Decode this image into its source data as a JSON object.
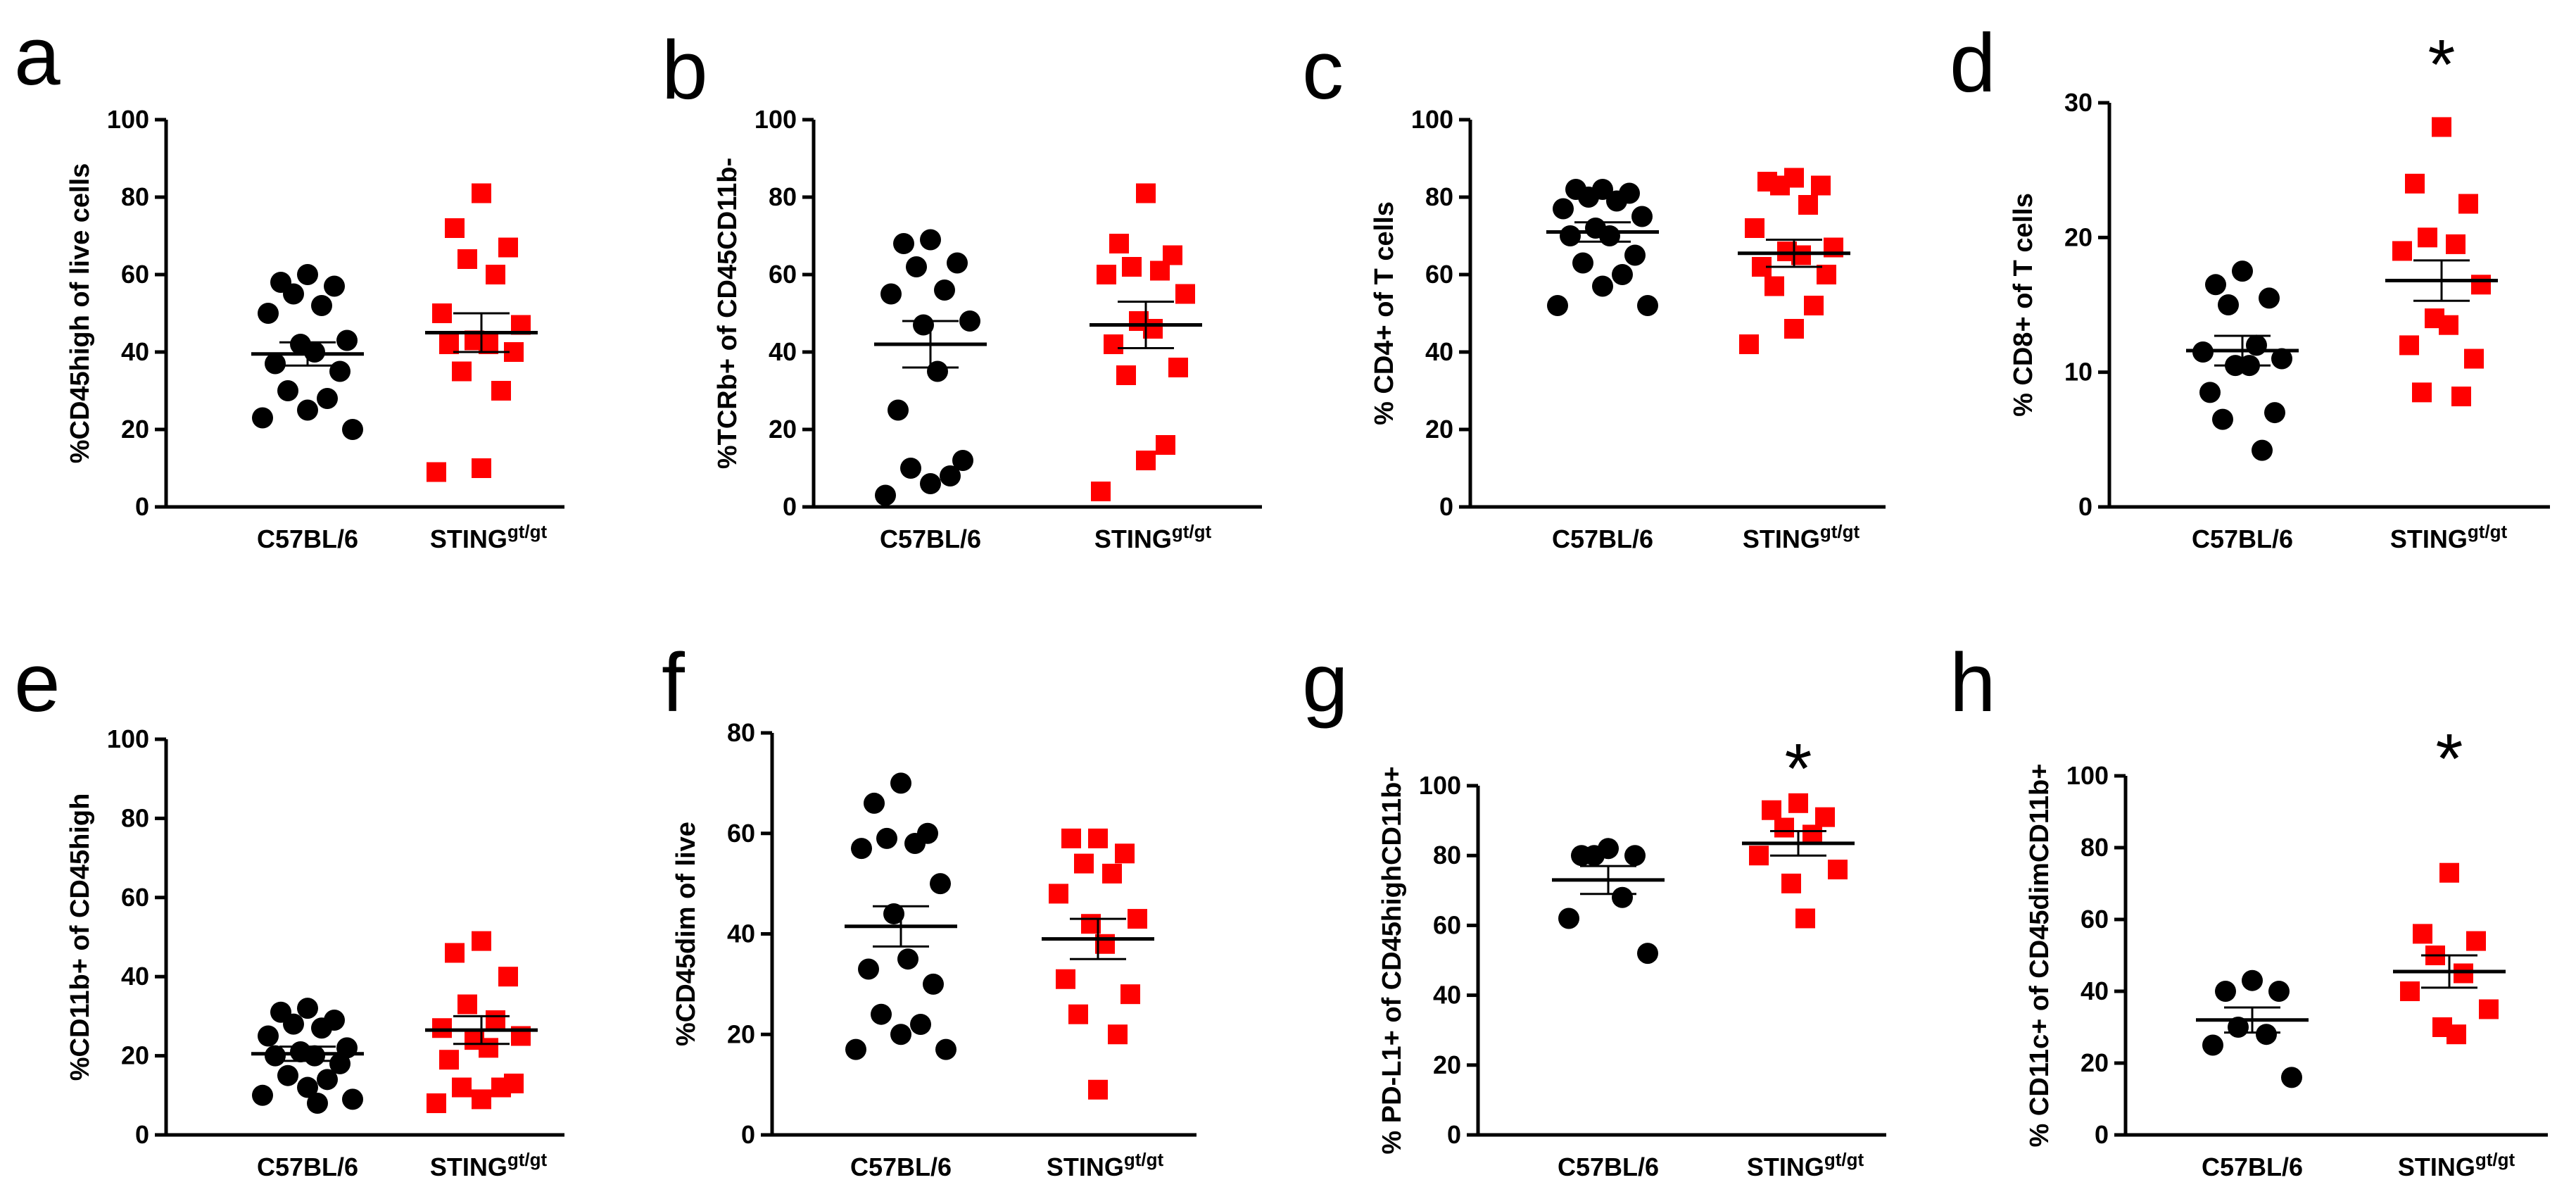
{
  "colors": {
    "control": "#000000",
    "sting": "#ff0000",
    "axis": "#000000"
  },
  "chart_data": [
    {
      "panel": "a",
      "type": "scatter",
      "ylabel": "%CD45high of live cells",
      "ylim": [
        0,
        100
      ],
      "yticks": [
        0,
        20,
        40,
        60,
        80,
        100
      ],
      "categories": [
        "C57BL/6",
        "STING"
      ],
      "category_superscript": [
        "",
        "gt/gt"
      ],
      "significance": "",
      "series": [
        {
          "name": "C57BL/6",
          "marker": "circle",
          "values": [
            60,
            58,
            57,
            55,
            52,
            50,
            43,
            42,
            40,
            37,
            35,
            30,
            28,
            25,
            23,
            20
          ],
          "mean": 39.5,
          "sem": 3
        },
        {
          "name": "STINGgt/gt",
          "marker": "square",
          "values": [
            81,
            72,
            67,
            64,
            60,
            50,
            47,
            43,
            42,
            42,
            40,
            35,
            30,
            10,
            9
          ],
          "mean": 45,
          "sem": 5
        }
      ]
    },
    {
      "panel": "b",
      "type": "scatter",
      "ylabel": "%TCRb+ of CD45CD11b-",
      "ylim": [
        0,
        100
      ],
      "yticks": [
        0,
        20,
        40,
        60,
        80,
        100
      ],
      "categories": [
        "C57BL/6",
        "STING"
      ],
      "category_superscript": [
        "",
        "gt/gt"
      ],
      "significance": "",
      "series": [
        {
          "name": "C57BL/6",
          "marker": "circle",
          "values": [
            69,
            68,
            63,
            62,
            56,
            55,
            48,
            47,
            35,
            25,
            12,
            10,
            8,
            6,
            3
          ],
          "mean": 42,
          "sem": 6
        },
        {
          "name": "STINGgt/gt",
          "marker": "square",
          "values": [
            81,
            68,
            65,
            62,
            61,
            60,
            55,
            48,
            46,
            42,
            36,
            34,
            16,
            12,
            4
          ],
          "mean": 47,
          "sem": 6
        }
      ]
    },
    {
      "panel": "c",
      "type": "scatter",
      "ylabel": "% CD4+ of T cells",
      "ylim": [
        0,
        100
      ],
      "yticks": [
        0,
        20,
        40,
        60,
        80,
        100
      ],
      "categories": [
        "C57BL/6",
        "STING"
      ],
      "category_superscript": [
        "",
        "gt/gt"
      ],
      "significance": "",
      "series": [
        {
          "name": "C57BL/6",
          "marker": "circle",
          "values": [
            82,
            82,
            81,
            80,
            79,
            77,
            75,
            72,
            70,
            70,
            65,
            63,
            60,
            57,
            52,
            52
          ],
          "mean": 71,
          "sem": 2.5
        },
        {
          "name": "STINGgt/gt",
          "marker": "square",
          "values": [
            85,
            84,
            83,
            83,
            78,
            72,
            67,
            66,
            65,
            62,
            60,
            57,
            52,
            46,
            42
          ],
          "mean": 65.5,
          "sem": 3.5
        }
      ]
    },
    {
      "panel": "d",
      "type": "scatter",
      "ylabel": "% CD8+ of T cells",
      "ylim": [
        0,
        30
      ],
      "yticks": [
        0,
        10,
        20,
        30
      ],
      "categories": [
        "C57BL/6",
        "STING"
      ],
      "category_superscript": [
        "",
        "gt/gt"
      ],
      "significance": "*",
      "series": [
        {
          "name": "C57BL/6",
          "marker": "circle",
          "values": [
            17.5,
            16.5,
            15.5,
            15,
            12,
            11.5,
            11,
            10.5,
            10.5,
            8.5,
            7,
            6.5,
            4.2
          ],
          "mean": 11.6,
          "sem": 1.1
        },
        {
          "name": "STINGgt/gt",
          "marker": "square",
          "values": [
            28.2,
            24,
            22.5,
            20,
            19.5,
            19,
            16.5,
            14,
            13.5,
            12,
            11,
            8.5,
            8.2
          ],
          "mean": 16.8,
          "sem": 1.5
        }
      ]
    },
    {
      "panel": "e",
      "type": "scatter",
      "ylabel": "%CD11b+ of CD45high",
      "ylim": [
        0,
        100
      ],
      "yticks": [
        0,
        20,
        40,
        60,
        80,
        100
      ],
      "categories": [
        "C57BL/6",
        "STING"
      ],
      "category_superscript": [
        "",
        "gt/gt"
      ],
      "significance": "",
      "series": [
        {
          "name": "C57BL/6",
          "marker": "circle",
          "values": [
            32,
            31,
            29,
            28,
            27,
            25,
            22,
            21,
            20,
            20,
            18,
            15,
            14,
            12,
            10,
            9,
            8
          ],
          "mean": 20.5,
          "sem": 1.8
        },
        {
          "name": "STINGgt/gt",
          "marker": "square",
          "values": [
            49,
            46,
            40,
            33,
            29,
            27,
            25,
            24,
            22,
            19,
            13,
            12,
            12,
            9,
            8
          ],
          "mean": 26.5,
          "sem": 3.5
        }
      ]
    },
    {
      "panel": "f",
      "type": "scatter",
      "ylabel": "%CD45dim of live",
      "ylim": [
        0,
        80
      ],
      "yticks": [
        0,
        20,
        40,
        60,
        80
      ],
      "categories": [
        "C57BL/6",
        "STING"
      ],
      "category_superscript": [
        "",
        "gt/gt"
      ],
      "significance": "",
      "series": [
        {
          "name": "C57BL/6",
          "marker": "circle",
          "values": [
            70,
            66,
            60,
            59,
            58,
            57,
            50,
            44,
            35,
            33,
            30,
            24,
            22,
            20,
            17,
            17
          ],
          "mean": 41.5,
          "sem": 4
        },
        {
          "name": "STINGgt/gt",
          "marker": "square",
          "values": [
            59,
            59,
            56,
            54,
            52,
            48,
            43,
            42,
            38,
            31,
            28,
            24,
            20,
            9
          ],
          "mean": 39,
          "sem": 4
        }
      ]
    },
    {
      "panel": "g",
      "type": "scatter",
      "ylabel": "% PD-L1+ of CD45highCD11b+",
      "ylim": [
        0,
        100
      ],
      "yticks": [
        0,
        20,
        40,
        60,
        80,
        100
      ],
      "categories": [
        "C57BL/6",
        "STING"
      ],
      "category_superscript": [
        "",
        "gt/gt"
      ],
      "significance": "*",
      "series": [
        {
          "name": "C57BL/6",
          "marker": "circle",
          "values": [
            82,
            80,
            80,
            80,
            68,
            62,
            52
          ],
          "mean": 73,
          "sem": 4
        },
        {
          "name": "STINGgt/gt",
          "marker": "square",
          "values": [
            95,
            93,
            91,
            88,
            86,
            80,
            76,
            72,
            62
          ],
          "mean": 83.5,
          "sem": 3.5
        }
      ]
    },
    {
      "panel": "h",
      "type": "scatter",
      "ylabel": "% CD11c+ of CD45dimCD11b+",
      "ylim": [
        0,
        100
      ],
      "yticks": [
        0,
        20,
        40,
        60,
        80,
        100
      ],
      "categories": [
        "C57BL/6",
        "STING"
      ],
      "category_superscript": [
        "",
        "gt/gt"
      ],
      "significance": "*",
      "series": [
        {
          "name": "C57BL/6",
          "marker": "circle",
          "values": [
            43,
            40,
            40,
            30,
            28,
            25,
            16
          ],
          "mean": 32,
          "sem": 3.5
        },
        {
          "name": "STINGgt/gt",
          "marker": "square",
          "values": [
            73,
            56,
            54,
            50,
            45,
            40,
            35,
            30,
            28
          ],
          "mean": 45.5,
          "sem": 4.5
        }
      ]
    }
  ]
}
